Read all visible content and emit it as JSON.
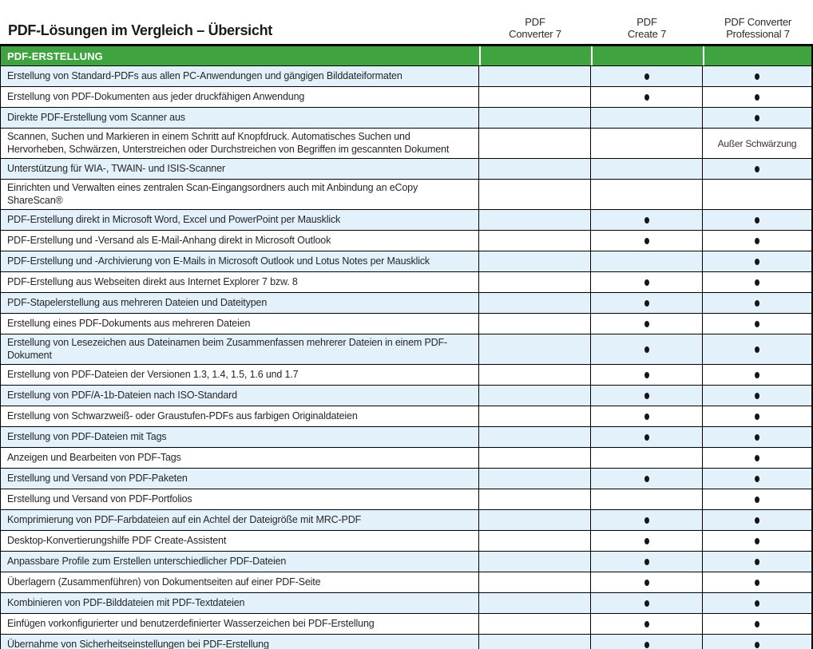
{
  "title": "PDF-Lösungen im Vergleich – Übersicht",
  "columns": [
    {
      "line1": "PDF",
      "line2": "Converter 7"
    },
    {
      "line1": "PDF",
      "line2": "Create 7"
    },
    {
      "line1": "PDF Converter",
      "line2": "Professional 7"
    }
  ],
  "section": {
    "label": "PDF-ERSTELLUNG"
  },
  "colors": {
    "section_green": "#3FA43F",
    "row_alt_blue": "#E2F1FA",
    "row_white": "#FFFFFF",
    "border_black": "#000000",
    "dot_black": "#161616"
  },
  "rows": [
    {
      "feature": "Erstellung von Standard-PDFs aus allen PC-Anwendungen und gängigen Bilddateiformaten",
      "values": [
        "",
        "dot",
        "dot"
      ]
    },
    {
      "feature": "Erstellung von PDF-Dokumenten aus jeder druckfähigen Anwendung",
      "values": [
        "",
        "dot",
        "dot"
      ]
    },
    {
      "feature": "Direkte PDF-Erstellung vom Scanner aus",
      "values": [
        "",
        "",
        "dot"
      ]
    },
    {
      "feature": "Scannen, Suchen und Markieren in einem Schritt auf Knopfdruck. Automatisches Suchen und Hervorheben, Schwärzen, Unterstreichen oder Durchstreichen von Begriffen im gescannten Dokument",
      "values": [
        "",
        "",
        "Außer Schwärzung"
      ]
    },
    {
      "feature": "Unterstützung für WIA-, TWAIN- und ISIS-Scanner",
      "values": [
        "",
        "",
        "dot"
      ]
    },
    {
      "feature": "Einrichten und Verwalten eines zentralen Scan-Eingangsordners auch mit Anbindung an eCopy ShareScan®",
      "values": [
        "",
        "",
        ""
      ]
    },
    {
      "feature": "PDF-Erstellung direkt in Microsoft Word, Excel und PowerPoint per Mausklick",
      "values": [
        "",
        "dot",
        "dot"
      ]
    },
    {
      "feature": "PDF-Erstellung und -Versand als E-Mail-Anhang direkt in Microsoft Outlook",
      "values": [
        "",
        "dot",
        "dot"
      ]
    },
    {
      "feature": "PDF-Erstellung und -Archivierung von E-Mails in Microsoft Outlook und Lotus Notes per Mausklick",
      "values": [
        "",
        "",
        "dot"
      ]
    },
    {
      "feature": "PDF-Erstellung aus Webseiten direkt aus Internet Explorer 7 bzw. 8",
      "values": [
        "",
        "dot",
        "dot"
      ]
    },
    {
      "feature": "PDF-Stapelerstellung aus mehreren Dateien und Dateitypen",
      "values": [
        "",
        "dot",
        "dot"
      ]
    },
    {
      "feature": "Erstellung eines PDF-Dokuments aus mehreren Dateien",
      "values": [
        "",
        "dot",
        "dot"
      ]
    },
    {
      "feature": "Erstellung von Lesezeichen aus Dateinamen beim Zusammenfassen mehrerer Dateien in einem PDF-Dokument",
      "values": [
        "",
        "dot",
        "dot"
      ]
    },
    {
      "feature": "Erstellung von PDF-Dateien der Versionen 1.3, 1.4, 1.5, 1.6 und 1.7",
      "values": [
        "",
        "dot",
        "dot"
      ]
    },
    {
      "feature": "Erstellung von PDF/A-1b-Dateien nach ISO-Standard",
      "values": [
        "",
        "dot",
        "dot"
      ]
    },
    {
      "feature": "Erstellung von Schwarzweiß- oder Graustufen-PDFs aus farbigen Originaldateien",
      "values": [
        "",
        "dot",
        "dot"
      ]
    },
    {
      "feature": "Erstellung von PDF-Dateien mit Tags",
      "values": [
        "",
        "dot",
        "dot"
      ]
    },
    {
      "feature": "Anzeigen und Bearbeiten von PDF-Tags",
      "values": [
        "",
        "",
        "dot"
      ]
    },
    {
      "feature": "Erstellung und Versand von PDF-Paketen",
      "values": [
        "",
        "dot",
        "dot"
      ]
    },
    {
      "feature": "Erstellung und Versand von PDF-Portfolios",
      "values": [
        "",
        "",
        "dot"
      ]
    },
    {
      "feature": "Komprimierung von PDF-Farbdateien auf ein Achtel der Dateigröße mit MRC-PDF",
      "values": [
        "",
        "dot",
        "dot"
      ]
    },
    {
      "feature": "Desktop-Konvertierungshilfe PDF Create-Assistent",
      "values": [
        "",
        "dot",
        "dot"
      ]
    },
    {
      "feature": "Anpassbare Profile zum Erstellen unterschiedlicher PDF-Dateien",
      "values": [
        "",
        "dot",
        "dot"
      ]
    },
    {
      "feature": "Überlagern (Zusammenführen) von Dokumentseiten auf einer PDF-Seite",
      "values": [
        "",
        "dot",
        "dot"
      ]
    },
    {
      "feature": "Kombinieren von PDF-Bilddateien mit PDF-Textdateien",
      "values": [
        "",
        "dot",
        "dot"
      ]
    },
    {
      "feature": "Einfügen vorkonfigurierter und benutzerdefinierter Wasserzeichen bei PDF-Erstellung",
      "values": [
        "",
        "dot",
        "dot"
      ]
    },
    {
      "feature": "Übernahme von Sicherheitseinstellungen bei PDF-Erstellung",
      "values": [
        "",
        "dot",
        "dot"
      ]
    }
  ]
}
